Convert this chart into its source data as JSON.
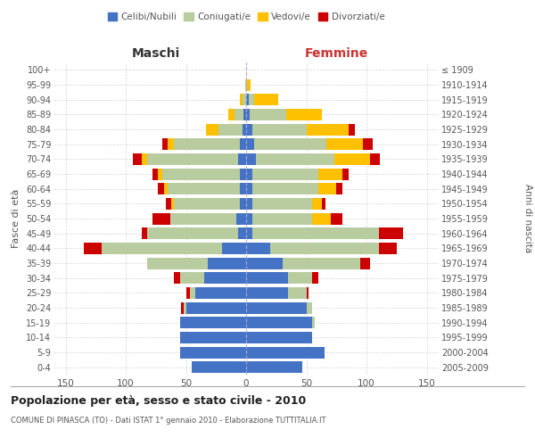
{
  "age_groups": [
    "0-4",
    "5-9",
    "10-14",
    "15-19",
    "20-24",
    "25-29",
    "30-34",
    "35-39",
    "40-44",
    "45-49",
    "50-54",
    "55-59",
    "60-64",
    "65-69",
    "70-74",
    "75-79",
    "80-84",
    "85-89",
    "90-94",
    "95-99",
    "100+"
  ],
  "birth_years": [
    "2005-2009",
    "2000-2004",
    "1995-1999",
    "1990-1994",
    "1985-1989",
    "1980-1984",
    "1975-1979",
    "1970-1974",
    "1965-1969",
    "1960-1964",
    "1955-1959",
    "1950-1954",
    "1945-1949",
    "1940-1944",
    "1935-1939",
    "1930-1934",
    "1925-1929",
    "1920-1924",
    "1915-1919",
    "1910-1914",
    "≤ 1909"
  ],
  "male": {
    "celibi": [
      45,
      55,
      55,
      55,
      50,
      42,
      35,
      32,
      20,
      7,
      8,
      5,
      5,
      5,
      7,
      5,
      3,
      2,
      0,
      0,
      0
    ],
    "coniugati": [
      0,
      0,
      0,
      0,
      2,
      5,
      20,
      50,
      100,
      75,
      55,
      55,
      60,
      65,
      75,
      55,
      20,
      8,
      3,
      1,
      0
    ],
    "vedovi": [
      0,
      0,
      0,
      0,
      0,
      0,
      0,
      0,
      0,
      0,
      0,
      2,
      3,
      3,
      5,
      5,
      10,
      5,
      2,
      0,
      0
    ],
    "divorziati": [
      0,
      0,
      0,
      0,
      2,
      3,
      5,
      0,
      15,
      5,
      15,
      5,
      5,
      5,
      7,
      5,
      0,
      0,
      0,
      0,
      0
    ]
  },
  "female": {
    "nubili": [
      47,
      65,
      55,
      55,
      50,
      35,
      35,
      30,
      20,
      5,
      5,
      5,
      5,
      5,
      8,
      7,
      5,
      3,
      2,
      0,
      0
    ],
    "coniugate": [
      0,
      0,
      0,
      2,
      5,
      15,
      20,
      65,
      90,
      105,
      50,
      50,
      55,
      55,
      65,
      60,
      45,
      30,
      5,
      1,
      0
    ],
    "vedove": [
      0,
      0,
      0,
      0,
      0,
      0,
      0,
      0,
      0,
      0,
      15,
      8,
      15,
      20,
      30,
      30,
      35,
      30,
      20,
      3,
      0
    ],
    "divorziate": [
      0,
      0,
      0,
      0,
      0,
      2,
      5,
      8,
      15,
      20,
      10,
      3,
      5,
      5,
      8,
      8,
      5,
      0,
      0,
      0,
      0
    ]
  },
  "colors": {
    "celibi": "#4472c4",
    "coniugati": "#b8cca0",
    "vedovi": "#ffc000",
    "divorziati": "#cc0000"
  },
  "title": "Popolazione per età, sesso e stato civile - 2010",
  "subtitle": "COMUNE DI PINASCA (TO) - Dati ISTAT 1° gennaio 2010 - Elaborazione TUTTITALIA.IT",
  "xlabel_left": "Maschi",
  "xlabel_right": "Femmine",
  "ylabel_left": "Fasce di età",
  "ylabel_right": "Anni di nascita",
  "xlim": 160,
  "legend_labels": [
    "Celibi/Nubili",
    "Coniugati/e",
    "Vedovi/e",
    "Divorziati/e"
  ],
  "background_color": "#ffffff",
  "grid_color": "#cccccc"
}
